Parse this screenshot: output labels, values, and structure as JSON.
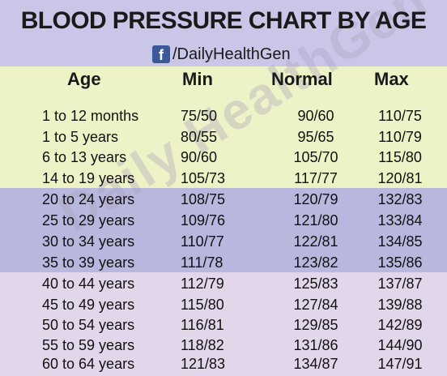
{
  "title": "BLOOD PRESSURE CHART BY AGE",
  "brand": {
    "icon": "facebook-icon",
    "handle": "/DailyHealthGen"
  },
  "watermark": "Daily HealthGen",
  "headers": {
    "age": "Age",
    "min": "Min",
    "normal": "Normal",
    "max": "Max"
  },
  "rows": [
    {
      "age": "1 to 12 months",
      "min": "75/50",
      "normal": "90/60",
      "max": "110/75"
    },
    {
      "age": "1 to 5 years",
      "min": "80/55",
      "normal": "95/65",
      "max": "110/79"
    },
    {
      "age": "6 to 13 years",
      "min": "90/60",
      "normal": "105/70",
      "max": "115/80"
    },
    {
      "age": "14 to 19 years",
      "min": "105/73",
      "normal": "117/77",
      "max": "120/81"
    },
    {
      "age": "20 to 24 years",
      "min": "108/75",
      "normal": "120/79",
      "max": "132/83"
    },
    {
      "age": "25 to 29 years",
      "min": "109/76",
      "normal": "121/80",
      "max": "133/84"
    },
    {
      "age": "30 to 34 years",
      "min": "110/77",
      "normal": "122/81",
      "max": "134/85"
    },
    {
      "age": "35 to 39 years",
      "min": "111/78",
      "normal": "123/82",
      "max": "135/86"
    },
    {
      "age": "40 to 44 years",
      "min": "112/79",
      "normal": "125/83",
      "max": "137/87"
    },
    {
      "age": "45 to 49 years",
      "min": "115/80",
      "normal": "127/84",
      "max": "139/88"
    },
    {
      "age": "50 to 54 years",
      "min": "116/81",
      "normal": "129/85",
      "max": "142/89"
    },
    {
      "age": "55 to 59 years",
      "min": "118/82",
      "normal": "131/86",
      "max": "144/90"
    },
    {
      "age": "60 to 64 years",
      "min": "121/83",
      "normal": "134/87",
      "max": "147/91"
    }
  ],
  "colors": {
    "title_band": "#c9c6e8",
    "band_child": "#eef2c7",
    "band_adult": "#b8b7de",
    "band_older": "#e2d6ea",
    "facebook": "#3b5998"
  }
}
